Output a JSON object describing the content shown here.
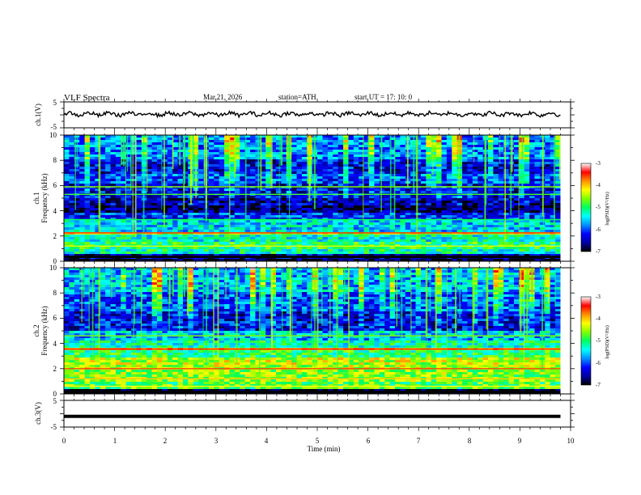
{
  "header": {
    "title": "VLF  Spectra",
    "date": "Mar.21, 2026",
    "station": "station=ATH",
    "start": "start  UT  =   17: 10: 0"
  },
  "chart_data": {
    "type": "heatmap",
    "xlabel": "Time  (min)",
    "xlim": [
      0,
      10
    ],
    "x_ticks": [
      "0",
      "1",
      "2",
      "3",
      "4",
      "5",
      "6",
      "7",
      "8",
      "9",
      "10"
    ],
    "recording_end_min": 9.8,
    "panels": [
      {
        "id": "ch1_voltage",
        "type": "line",
        "ylabel": "ch.1(V)",
        "ylim": [
          -5,
          5
        ],
        "y_ticks": [
          "5",
          "-5"
        ],
        "approx_level_v": 0.3,
        "color": "#000000"
      },
      {
        "id": "ch1_spectrogram",
        "type": "heatmap",
        "ylabel_lines": [
          "ch.1",
          "Frequency  (kHz)"
        ],
        "ylim": [
          0,
          10
        ],
        "y_ticks": [
          "0",
          "2",
          "4",
          "6",
          "8",
          "10"
        ],
        "bands": [
          {
            "from": 0,
            "to": 0.2,
            "level": -7
          },
          {
            "from": 0.2,
            "to": 0.5,
            "level": -6.5
          },
          {
            "from": 0.5,
            "to": 1.0,
            "level": -5.2
          },
          {
            "from": 1.0,
            "to": 1.5,
            "level": -5.0
          },
          {
            "from": 1.5,
            "to": 2.1,
            "level": -5.3
          },
          {
            "from": 2.1,
            "to": 2.4,
            "level": -4.4
          },
          {
            "from": 2.4,
            "to": 3.3,
            "level": -5.5
          },
          {
            "from": 3.3,
            "to": 3.9,
            "level": -6.1
          },
          {
            "from": 3.9,
            "to": 4.4,
            "level": -6.7
          },
          {
            "from": 4.4,
            "to": 5.0,
            "level": -6.5
          },
          {
            "from": 5.0,
            "to": 6.2,
            "level": -6.3
          },
          {
            "from": 6.2,
            "to": 7.0,
            "level": -6.0
          },
          {
            "from": 7.0,
            "to": 8.0,
            "level": -6.3
          },
          {
            "from": 8.0,
            "to": 10.0,
            "level": -5.8
          }
        ],
        "lines": [
          {
            "f": 2.25,
            "level": -3.5
          },
          {
            "f": 1.2,
            "level": -4.3
          },
          {
            "f": 3.3,
            "level": -5.0
          },
          {
            "f": 5.3,
            "level": -4.8
          },
          {
            "f": 5.9,
            "level": -4.6
          },
          {
            "f": 0.35,
            "level": -7
          }
        ]
      },
      {
        "id": "ch2_spectrogram",
        "type": "heatmap",
        "ylabel_lines": [
          "ch.2",
          "Frequency  (kHz)"
        ],
        "ylim": [
          0,
          10
        ],
        "y_ticks": [
          "0",
          "2",
          "4",
          "6",
          "8",
          "10"
        ],
        "bands": [
          {
            "from": 0,
            "to": 0.3,
            "level": -7
          },
          {
            "from": 0.3,
            "to": 1.0,
            "level": -4.8
          },
          {
            "from": 1.0,
            "to": 2.0,
            "level": -4.6
          },
          {
            "from": 2.0,
            "to": 2.8,
            "level": -4.4
          },
          {
            "from": 2.8,
            "to": 3.4,
            "level": -5.0
          },
          {
            "from": 3.4,
            "to": 3.7,
            "level": -4.2
          },
          {
            "from": 3.7,
            "to": 4.3,
            "level": -5.2
          },
          {
            "from": 4.3,
            "to": 5.0,
            "level": -5.6
          },
          {
            "from": 5.0,
            "to": 6.5,
            "level": -6.3
          },
          {
            "from": 6.5,
            "to": 8.0,
            "level": -6.0
          },
          {
            "from": 8.0,
            "to": 10.0,
            "level": -5.6
          }
        ],
        "lines": [
          {
            "f": 2.0,
            "level": -3.6
          },
          {
            "f": 3.55,
            "level": -3.4
          },
          {
            "f": 1.2,
            "level": -4.0
          },
          {
            "f": 4.6,
            "level": -4.6
          },
          {
            "f": 0.6,
            "level": -4.2
          },
          {
            "f": 0.15,
            "level": -7
          }
        ]
      },
      {
        "id": "ch3_voltage",
        "type": "line",
        "ylabel": "ch.3(V)",
        "ylim": [
          -5,
          5
        ],
        "y_ticks": [
          "5",
          "-5"
        ],
        "approx_level_v": -1.0,
        "color": "#000000"
      }
    ],
    "colorbar": {
      "label": "log(PSD)(V²/Hz)",
      "range": [
        -7,
        -3
      ],
      "ticks": [
        "-3",
        "-4",
        "-5",
        "-6",
        "-7"
      ],
      "colormap": [
        "#000000",
        "#0000a0",
        "#0000ff",
        "#0090ff",
        "#00ffff",
        "#00ff60",
        "#80ff00",
        "#ffff00",
        "#ff9000",
        "#ff0000",
        "#ffffff"
      ]
    }
  }
}
